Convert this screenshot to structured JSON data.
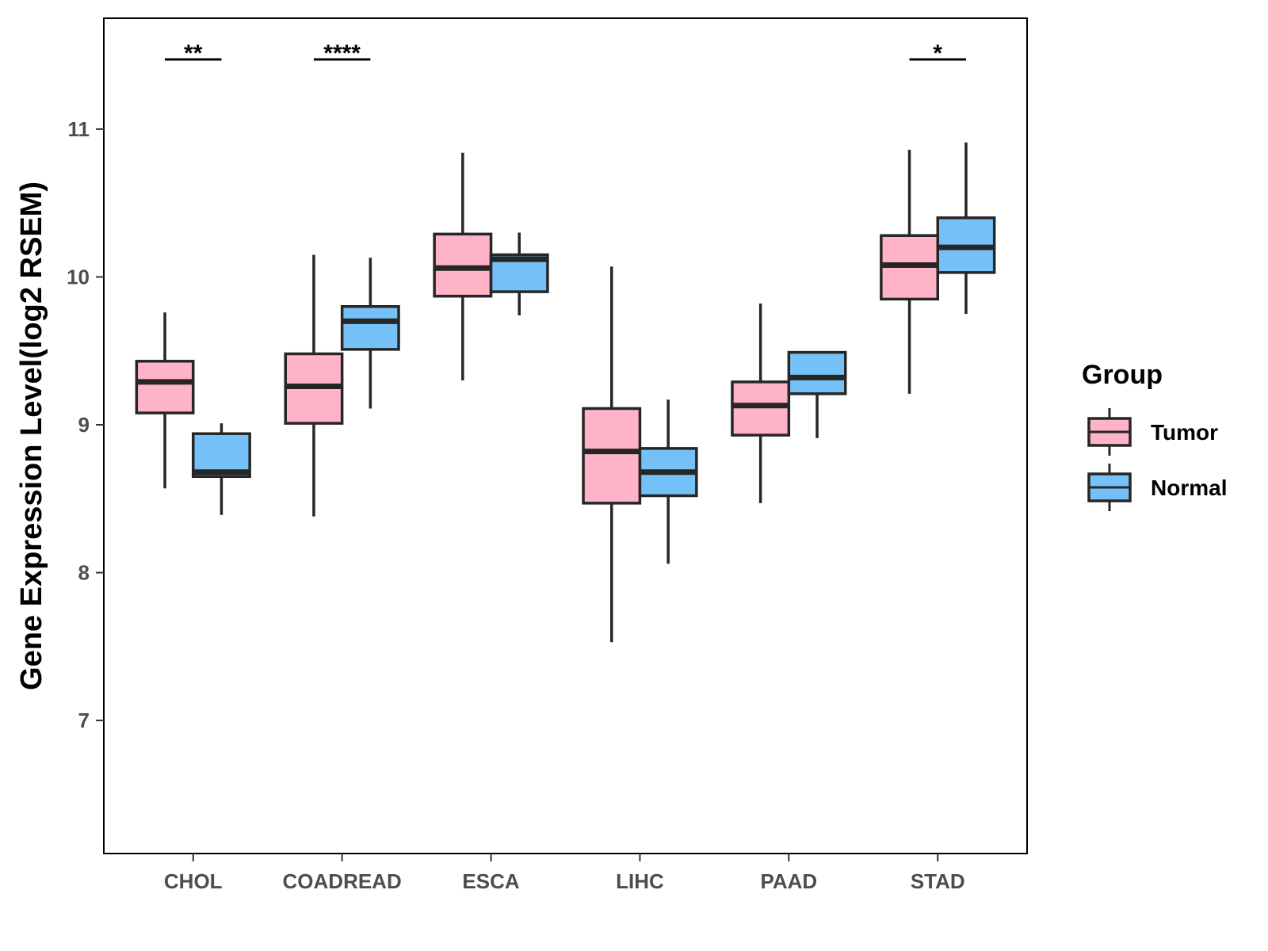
{
  "chart_data": {
    "type": "boxplot",
    "title": "",
    "xlabel": "",
    "ylabel": "Gene Expression Level(log2 RSEM)",
    "ylim": [
      6.1,
      11.75
    ],
    "yticks": [
      7,
      8,
      9,
      10,
      11
    ],
    "grid": false,
    "legend": {
      "title": "Group",
      "placement": "right",
      "entries": [
        {
          "name": "Tumor",
          "color": "#FFB3C6"
        },
        {
          "name": "Normal",
          "color": "#75C1F7"
        }
      ]
    },
    "categories": [
      "CHOL",
      "COADREAD",
      "ESCA",
      "LIHC",
      "PAAD",
      "STAD"
    ],
    "series": [
      {
        "name": "Tumor",
        "color": "#FFB3C6",
        "boxes": [
          {
            "whisker_low": 8.57,
            "q1": 9.08,
            "median": 9.29,
            "q3": 9.43,
            "whisker_high": 9.76
          },
          {
            "whisker_low": 8.38,
            "q1": 9.01,
            "median": 9.26,
            "q3": 9.48,
            "whisker_high": 10.15
          },
          {
            "whisker_low": 9.3,
            "q1": 9.87,
            "median": 10.06,
            "q3": 10.29,
            "whisker_high": 10.84
          },
          {
            "whisker_low": 7.53,
            "q1": 8.47,
            "median": 8.82,
            "q3": 9.11,
            "whisker_high": 10.07
          },
          {
            "whisker_low": 8.47,
            "q1": 8.93,
            "median": 9.13,
            "q3": 9.29,
            "whisker_high": 9.82
          },
          {
            "whisker_low": 9.21,
            "q1": 9.85,
            "median": 10.08,
            "q3": 10.28,
            "whisker_high": 10.86
          }
        ]
      },
      {
        "name": "Normal",
        "color": "#75C1F7",
        "boxes": [
          {
            "whisker_low": 8.39,
            "q1": 8.65,
            "median": 8.68,
            "q3": 8.94,
            "whisker_high": 9.01
          },
          {
            "whisker_low": 9.11,
            "q1": 9.51,
            "median": 9.7,
            "q3": 9.8,
            "whisker_high": 10.13
          },
          {
            "whisker_low": 9.74,
            "q1": 9.9,
            "median": 10.12,
            "q3": 10.15,
            "whisker_high": 10.3
          },
          {
            "whisker_low": 8.06,
            "q1": 8.52,
            "median": 8.68,
            "q3": 8.84,
            "whisker_high": 9.17
          },
          {
            "whisker_low": 8.91,
            "q1": 9.21,
            "median": 9.32,
            "q3": 9.49,
            "whisker_high": 9.49
          },
          {
            "whisker_low": 9.75,
            "q1": 10.03,
            "median": 10.2,
            "q3": 10.4,
            "whisker_high": 10.91
          }
        ]
      }
    ],
    "annotations": [
      {
        "category": "CHOL",
        "label": "**"
      },
      {
        "category": "COADREAD",
        "label": "****"
      },
      {
        "category": "STAD",
        "label": "*"
      }
    ]
  }
}
